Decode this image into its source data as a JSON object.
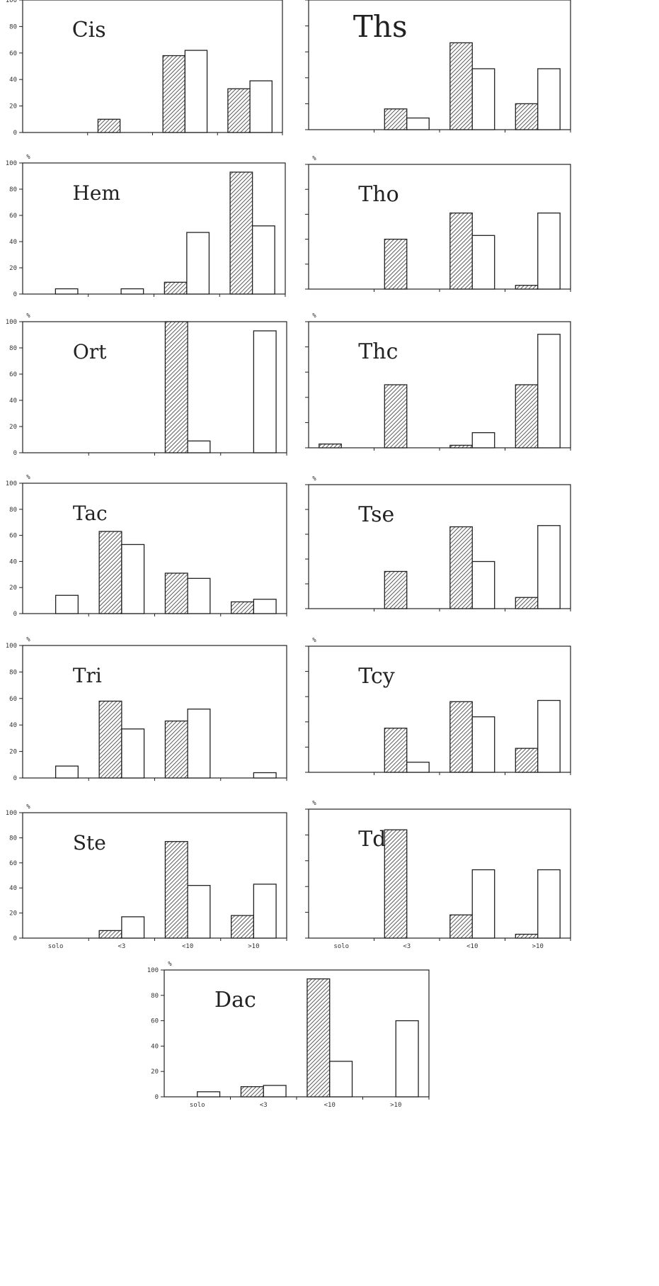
{
  "chart_data": [
    {
      "type": "bar",
      "title": "Cis",
      "ylabel": "",
      "ylim": [
        0,
        100
      ],
      "yticks": [
        "100",
        "80",
        "60",
        "40",
        "20",
        "0"
      ],
      "categories": [
        "solo",
        "<3",
        "<10",
        ">10"
      ],
      "series": [
        {
          "values": [
            0,
            10,
            58,
            33
          ]
        },
        {
          "values": [
            0,
            0,
            62,
            39
          ]
        }
      ]
    },
    {
      "type": "bar",
      "title": "Ths",
      "ylabel": "",
      "ylim": [
        0,
        100
      ],
      "yticks": [],
      "categories": [
        "solo",
        "<3",
        "<10",
        ">10"
      ],
      "series": [
        {
          "values": [
            0,
            16,
            67,
            20
          ]
        },
        {
          "values": [
            0,
            9,
            47,
            47
          ]
        }
      ]
    },
    {
      "type": "bar",
      "title": "Hem",
      "ylabel": "%",
      "ylim": [
        0,
        100
      ],
      "yticks": [
        "100",
        "80",
        "60",
        "40",
        "20",
        "0"
      ],
      "categories": [
        "solo",
        "<3",
        "<10",
        ">10"
      ],
      "series": [
        {
          "values": [
            0,
            0,
            9,
            93
          ]
        },
        {
          "values": [
            4,
            4,
            47,
            52
          ]
        }
      ]
    },
    {
      "type": "bar",
      "title": "Tho",
      "ylabel": "%",
      "ylim": [
        0,
        100
      ],
      "yticks": [],
      "categories": [
        "solo",
        "<3",
        "<10",
        ">10"
      ],
      "series": [
        {
          "values": [
            0,
            40,
            61,
            3
          ]
        },
        {
          "values": [
            0,
            0,
            43,
            61
          ]
        }
      ]
    },
    {
      "type": "bar",
      "title": "Ort",
      "ylabel": "%",
      "ylim": [
        0,
        100
      ],
      "yticks": [
        "100",
        "80",
        "60",
        "40",
        "20",
        "0"
      ],
      "categories": [
        "solo",
        "<3",
        "<10",
        ">10"
      ],
      "series": [
        {
          "values": [
            0,
            0,
            100,
            0
          ]
        },
        {
          "values": [
            0,
            0,
            9,
            93
          ]
        }
      ]
    },
    {
      "type": "bar",
      "title": "Thc",
      "ylabel": "%",
      "ylim": [
        0,
        100
      ],
      "yticks": [],
      "categories": [
        "solo",
        "<3",
        "<10",
        ">10"
      ],
      "series": [
        {
          "values": [
            3,
            50,
            2,
            50
          ]
        },
        {
          "values": [
            0,
            0,
            12,
            90
          ]
        }
      ]
    },
    {
      "type": "bar",
      "title": "Tac",
      "ylabel": "%",
      "ylim": [
        0,
        100
      ],
      "yticks": [
        "100",
        "80",
        "60",
        "40",
        "20",
        "0"
      ],
      "categories": [
        "solo",
        "<3",
        "<10",
        ">10"
      ],
      "series": [
        {
          "values": [
            0,
            63,
            31,
            9
          ]
        },
        {
          "values": [
            14,
            53,
            27,
            11
          ]
        }
      ]
    },
    {
      "type": "bar",
      "title": "Tse",
      "ylabel": "%",
      "ylim": [
        0,
        100
      ],
      "yticks": [],
      "categories": [
        "solo",
        "<3",
        "<10",
        ">10"
      ],
      "series": [
        {
          "values": [
            0,
            30,
            66,
            9
          ]
        },
        {
          "values": [
            0,
            0,
            38,
            67
          ]
        }
      ]
    },
    {
      "type": "bar",
      "title": "Tri",
      "ylabel": "%",
      "ylim": [
        0,
        100
      ],
      "yticks": [
        "100",
        "80",
        "60",
        "40",
        "20",
        "0"
      ],
      "categories": [
        "solo",
        "<3",
        "<10",
        ">10"
      ],
      "series": [
        {
          "values": [
            0,
            58,
            43,
            0
          ]
        },
        {
          "values": [
            9,
            37,
            52,
            4
          ]
        }
      ]
    },
    {
      "type": "bar",
      "title": "Tcy",
      "ylabel": "%",
      "ylim": [
        0,
        100
      ],
      "yticks": [],
      "categories": [
        "solo",
        "<3",
        "<10",
        ">10"
      ],
      "series": [
        {
          "values": [
            0,
            35,
            56,
            19
          ]
        },
        {
          "values": [
            0,
            8,
            44,
            57
          ]
        }
      ]
    },
    {
      "type": "bar",
      "title": "Ste",
      "ylabel": "%",
      "ylim": [
        0,
        100
      ],
      "yticks": [
        "100",
        "80",
        "60",
        "40",
        "20",
        "0"
      ],
      "categories": [
        "solo",
        "<3",
        "<10",
        ">10"
      ],
      "categoryLabels": [
        "solo",
        "<3",
        "<10",
        ">10"
      ],
      "series": [
        {
          "values": [
            0,
            6,
            77,
            18
          ]
        },
        {
          "values": [
            0,
            17,
            42,
            43
          ]
        }
      ]
    },
    {
      "type": "bar",
      "title": "Tde",
      "ylabel": "%",
      "ylim": [
        0,
        100
      ],
      "yticks": [],
      "categories": [
        "solo",
        "<3",
        "<10",
        ">10"
      ],
      "categoryLabels": [
        "solo",
        "<3",
        "<10",
        ">10"
      ],
      "series": [
        {
          "values": [
            0,
            84,
            18,
            3
          ]
        },
        {
          "values": [
            0,
            0,
            53,
            53
          ]
        }
      ]
    },
    {
      "type": "bar",
      "title": "Dac",
      "ylabel": "%",
      "ylim": [
        0,
        100
      ],
      "yticks": [
        "100",
        "80",
        "60",
        "40",
        "20",
        "0"
      ],
      "categories": [
        "solo",
        "<3",
        "<10",
        ">10"
      ],
      "categoryLabels": [
        "solo",
        "<3",
        "<10",
        ">10"
      ],
      "series": [
        {
          "values": [
            0,
            8,
            93,
            0
          ]
        },
        {
          "values": [
            4,
            9,
            28,
            60
          ]
        }
      ]
    }
  ]
}
